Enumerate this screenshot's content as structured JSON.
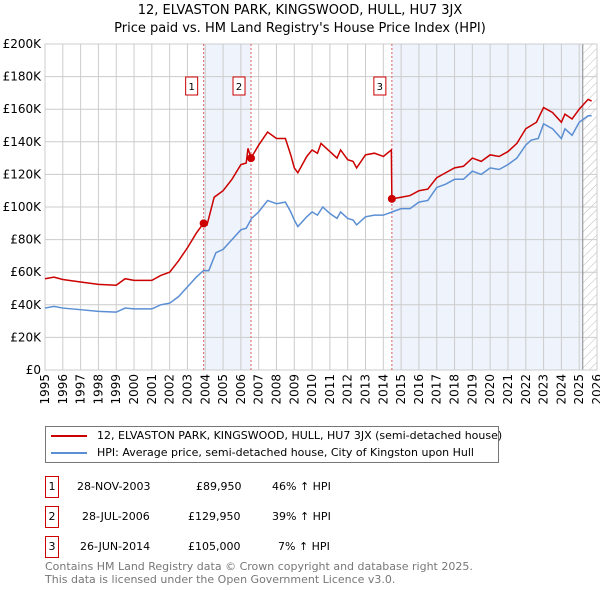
{
  "chart_data": {
    "type": "line",
    "title": "12, ELVASTON PARK, KINGSWOOD, HULL, HU7 3JX",
    "subtitle": "Price paid vs. HM Land Registry's House Price Index (HPI)",
    "xlim": [
      1995,
      2026
    ],
    "ylim": [
      0,
      200000
    ],
    "x_ticks": [
      "1995",
      "1996",
      "1997",
      "1998",
      "1999",
      "2000",
      "2001",
      "2002",
      "2003",
      "2004",
      "2005",
      "2006",
      "2007",
      "2008",
      "2009",
      "2010",
      "2011",
      "2012",
      "2013",
      "2014",
      "2015",
      "2016",
      "2017",
      "2018",
      "2019",
      "2020",
      "2021",
      "2022",
      "2023",
      "2024",
      "2025",
      "2026"
    ],
    "y_ticks": [
      {
        "v": 0,
        "label": "£0"
      },
      {
        "v": 20000,
        "label": "£20K"
      },
      {
        "v": 40000,
        "label": "£40K"
      },
      {
        "v": 60000,
        "label": "£60K"
      },
      {
        "v": 80000,
        "label": "£80K"
      },
      {
        "v": 100000,
        "label": "£100K"
      },
      {
        "v": 120000,
        "label": "£120K"
      },
      {
        "v": 140000,
        "label": "£140K"
      },
      {
        "v": 160000,
        "label": "£160K"
      },
      {
        "v": 180000,
        "label": "£180K"
      },
      {
        "v": 200000,
        "label": "£200K"
      }
    ],
    "grid": true,
    "colors": {
      "property": "#cc0000",
      "hpi": "#5b8fd4",
      "shade": "#eef3fc"
    },
    "series": [
      {
        "name": "12, ELVASTON PARK, KINGSWOOD, HULL, HU7 3JX (semi-detached house)",
        "x": [
          1995,
          1995.5,
          1996,
          1997,
          1998,
          1999,
          1999.5,
          2000,
          2001,
          2001.5,
          2002,
          2002.5,
          2003,
          2003.5,
          2003.9,
          2004.1,
          2004.5,
          2005,
          2005.5,
          2006,
          2006.3,
          2006.4,
          2006.57,
          2007,
          2007.5,
          2008,
          2008.5,
          2008.8,
          2009,
          2009.2,
          2009.7,
          2010,
          2010.3,
          2010.5,
          2011,
          2011.4,
          2011.6,
          2012,
          2012.3,
          2012.5,
          2013,
          2013.5,
          2014,
          2014.45,
          2014.48,
          2015,
          2015.5,
          2016,
          2016.5,
          2017,
          2017.5,
          2018,
          2018.5,
          2019,
          2019.5,
          2020,
          2020.5,
          2021,
          2021.5,
          2022,
          2022.3,
          2022.6,
          2023,
          2023.5,
          2024,
          2024.2,
          2024.6,
          2025,
          2025.5,
          2025.7
        ],
        "y": [
          56000,
          57000,
          55500,
          54000,
          52500,
          52000,
          56000,
          55000,
          55000,
          58000,
          60000,
          67000,
          75000,
          84000,
          90000,
          89000,
          106000,
          110000,
          117000,
          126000,
          127000,
          136000,
          130000,
          138000,
          146000,
          142000,
          142000,
          132000,
          124000,
          121000,
          131000,
          135000,
          133000,
          139000,
          134000,
          130000,
          135000,
          129000,
          128000,
          124000,
          132000,
          133000,
          131000,
          135000,
          105000,
          106000,
          107000,
          110000,
          111000,
          118000,
          121000,
          124000,
          125000,
          130000,
          128000,
          132000,
          131000,
          134000,
          139000,
          148000,
          150000,
          152000,
          161000,
          158000,
          152000,
          157000,
          154000,
          160000,
          166000,
          165000
        ]
      },
      {
        "name": "HPI: Average price, semi-detached house, City of Kingston upon Hull",
        "x": [
          1995,
          1995.5,
          1996,
          1997,
          1998,
          1999,
          1999.5,
          2000,
          2001,
          2001.5,
          2002,
          2002.5,
          2003,
          2003.5,
          2003.9,
          2004.2,
          2004.6,
          2005,
          2005.5,
          2006,
          2006.3,
          2006.6,
          2007,
          2007.5,
          2008,
          2008.5,
          2008.8,
          2009,
          2009.2,
          2009.7,
          2010,
          2010.3,
          2010.6,
          2011,
          2011.4,
          2011.6,
          2012,
          2012.3,
          2012.5,
          2013,
          2013.5,
          2014,
          2014.5,
          2015,
          2015.5,
          2016,
          2016.5,
          2017,
          2017.5,
          2018,
          2018.5,
          2019,
          2019.5,
          2020,
          2020.5,
          2021,
          2021.5,
          2022,
          2022.3,
          2022.7,
          2023,
          2023.5,
          2024,
          2024.2,
          2024.6,
          2025,
          2025.5,
          2025.7
        ],
        "y": [
          38000,
          39000,
          38000,
          37000,
          36000,
          35500,
          38000,
          37500,
          37500,
          40000,
          41000,
          45000,
          51000,
          57000,
          61000,
          61000,
          72000,
          74000,
          80000,
          86000,
          87000,
          93000,
          97000,
          104000,
          102000,
          103000,
          97000,
          92000,
          88000,
          94000,
          97000,
          95000,
          100000,
          96000,
          93000,
          97000,
          93000,
          92000,
          89000,
          94000,
          95000,
          95000,
          97000,
          99000,
          99000,
          103000,
          104000,
          112000,
          114000,
          117000,
          117000,
          122000,
          120000,
          124000,
          123000,
          126000,
          130000,
          138000,
          141000,
          142000,
          151000,
          148000,
          142000,
          148000,
          144000,
          152000,
          156000,
          156000
        ]
      }
    ],
    "sales": [
      {
        "label": "1",
        "x": 2003.91,
        "price": 89950
      },
      {
        "label": "2",
        "x": 2006.57,
        "price": 129950
      },
      {
        "label": "3",
        "x": 2014.48,
        "price": 105000
      }
    ],
    "shaded_ranges": [
      [
        2003.91,
        2006.57
      ],
      [
        2014.48,
        2025.2
      ]
    ],
    "forecast_hatch_from": 2025.2
  },
  "legend": {
    "property": "12, ELVASTON PARK, KINGSWOOD, HULL, HU7 3JX (semi-detached house)",
    "hpi": "HPI: Average price, semi-detached house, City of Kingston upon Hull"
  },
  "table": [
    {
      "num": "1",
      "date": "28-NOV-2003",
      "price": "£89,950",
      "hpi": "46% ↑ HPI"
    },
    {
      "num": "2",
      "date": "28-JUL-2006",
      "price": "£129,950",
      "hpi": "39% ↑ HPI"
    },
    {
      "num": "3",
      "date": "26-JUN-2014",
      "price": "£105,000",
      "hpi": "7% ↑ HPI"
    }
  ],
  "footer": {
    "line1": "Contains HM Land Registry data © Crown copyright and database right 2025.",
    "line2": "This data is licensed under the Open Government Licence v3.0."
  }
}
